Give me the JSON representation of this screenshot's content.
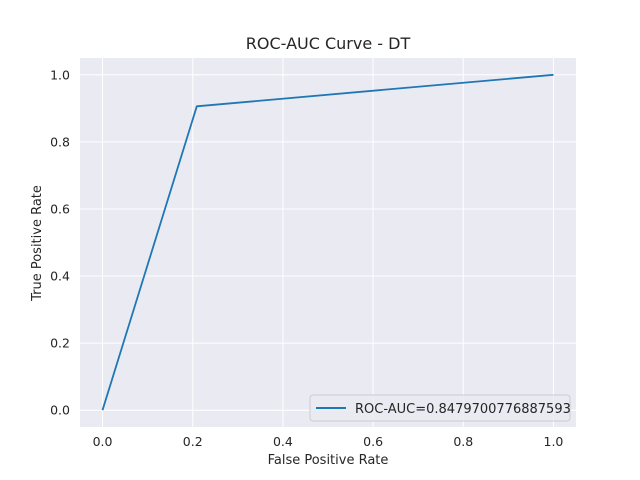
{
  "chart_data": {
    "type": "line",
    "title": "ROC-AUC Curve - DT",
    "xlabel": "False Positive Rate",
    "ylabel": "True Positive Rate",
    "xlim": [
      -0.05,
      1.05
    ],
    "ylim": [
      -0.05,
      1.05
    ],
    "x_ticks": [
      "0.0",
      "0.2",
      "0.4",
      "0.6",
      "0.8",
      "1.0"
    ],
    "y_ticks": [
      "0.0",
      "0.2",
      "0.4",
      "0.6",
      "0.8",
      "1.0"
    ],
    "grid": true,
    "legend_position": "lower-right",
    "series": [
      {
        "name": "ROC-AUC=0.8479700776887593",
        "color": "#1f77b4",
        "x": [
          0.0,
          0.209,
          1.0
        ],
        "y": [
          0.0,
          0.906,
          1.0
        ]
      }
    ]
  }
}
